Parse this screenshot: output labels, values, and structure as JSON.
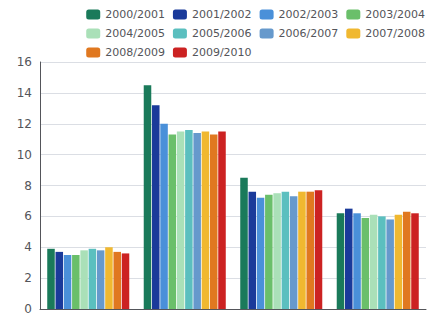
{
  "chart_data": {
    "type": "bar",
    "categories": [
      null,
      null,
      null,
      null
    ],
    "series": [
      {
        "name": "2000/2001",
        "color": "#1a7a5a",
        "values": [
          3.9,
          14.5,
          8.5,
          6.2
        ]
      },
      {
        "name": "2001/2002",
        "color": "#1a3a9a",
        "values": [
          3.7,
          13.2,
          7.6,
          6.5
        ]
      },
      {
        "name": "2002/2003",
        "color": "#4a90d9",
        "values": [
          3.5,
          12.0,
          7.2,
          6.2
        ]
      },
      {
        "name": "2003/2004",
        "color": "#6abf6a",
        "values": [
          3.5,
          11.3,
          7.4,
          5.9
        ]
      },
      {
        "name": "2004/2005",
        "color": "#aae0b8",
        "values": [
          3.8,
          11.5,
          7.5,
          6.1
        ]
      },
      {
        "name": "2005/2006",
        "color": "#5bbfbf",
        "values": [
          3.9,
          11.6,
          7.6,
          6.0
        ]
      },
      {
        "name": "2006/2007",
        "color": "#6699cc",
        "values": [
          3.8,
          11.4,
          7.3,
          5.8
        ]
      },
      {
        "name": "2007/2008",
        "color": "#f0b830",
        "values": [
          4.0,
          11.5,
          7.6,
          6.1
        ]
      },
      {
        "name": "2008/2009",
        "color": "#e07820",
        "values": [
          3.7,
          11.3,
          7.6,
          6.3
        ]
      },
      {
        "name": "2009/2010",
        "color": "#cc2222",
        "values": [
          3.6,
          11.5,
          7.7,
          6.2
        ]
      }
    ],
    "ylim": [
      0,
      16
    ],
    "yticks": [
      0,
      2,
      4,
      6,
      8,
      10,
      12,
      14,
      16
    ],
    "grid": true,
    "legend": "upper right",
    "tick_labels": "y"
  }
}
